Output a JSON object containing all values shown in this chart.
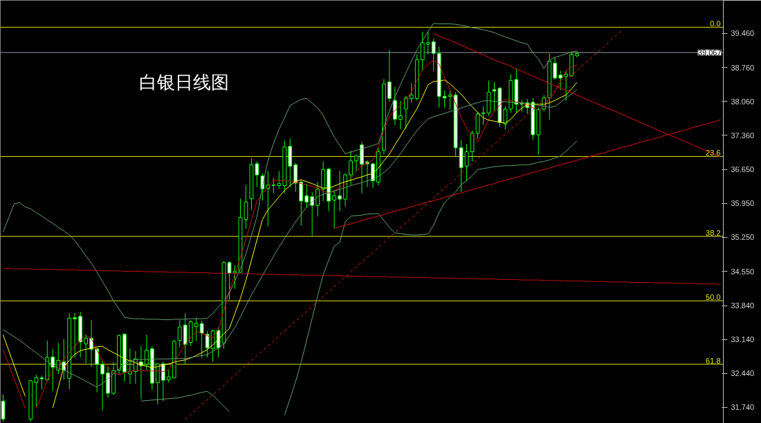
{
  "chart_data": {
    "type": "candlestick",
    "title": "白银日线图",
    "color": "#00ff00",
    "categories": [
      null,
      null,
      null,
      null,
      null,
      null,
      null,
      null,
      null,
      null,
      null,
      null,
      null,
      null,
      null,
      null,
      null,
      null,
      null,
      null,
      null,
      null,
      null,
      null,
      null,
      null,
      null,
      null,
      null,
      null,
      null,
      null,
      null,
      null,
      null,
      null,
      null,
      null,
      null,
      null,
      null,
      null,
      null,
      null,
      null,
      null,
      null,
      null,
      null,
      null,
      null,
      null,
      null,
      null,
      null,
      null,
      null,
      null,
      null,
      null,
      null,
      null,
      null,
      null,
      null,
      null,
      null,
      null,
      null,
      null,
      null,
      null,
      null,
      null,
      null,
      null,
      null,
      null,
      null,
      null,
      null,
      null,
      null,
      null,
      null,
      null,
      null,
      null,
      null,
      null,
      null,
      null,
      null,
      null,
      null,
      null,
      null,
      null,
      null,
      null,
      null,
      null,
      null,
      null,
      null,
      null,
      null,
      null,
      null,
      null,
      null,
      null,
      null,
      null,
      null,
      null,
      null,
      null,
      null,
      null,
      null,
      null,
      null,
      null,
      null,
      null,
      null,
      null,
      null,
      null,
      null
    ],
    "ohlc": [
      [
        31.87,
        32.01,
        31.45,
        31.5
      ],
      null,
      null,
      null,
      null,
      [
        31.5,
        32.31,
        31.45,
        32.29
      ],
      [
        32.25,
        32.41,
        31.76,
        32.35
      ],
      [
        32.35,
        32.4,
        32.11,
        32.33
      ],
      [
        32.31,
        33.12,
        32.28,
        32.77
      ],
      [
        32.78,
        32.95,
        32.08,
        32.57
      ],
      [
        32.51,
        33.07,
        32.43,
        32.71
      ],
      [
        32.68,
        33.15,
        32.31,
        32.51
      ],
      [
        32.34,
        33.68,
        32.11,
        33.58
      ],
      [
        33.59,
        33.69,
        32.77,
        33.57
      ],
      [
        33.62,
        33.71,
        32.77,
        33.09
      ],
      [
        33.05,
        33.25,
        32.65,
        33.17
      ],
      [
        33.17,
        33.54,
        32.58,
        32.94
      ],
      [
        32.95,
        32.97,
        32.05,
        32.63
      ],
      [
        32.63,
        32.7,
        31.68,
        32.43
      ],
      [
        32.45,
        32.58,
        31.94,
        32.03
      ],
      [
        32.03,
        32.68,
        32.0,
        32.5
      ],
      [
        32.51,
        33.25,
        32.41,
        33.22
      ],
      [
        33.25,
        33.27,
        32.27,
        32.47
      ],
      [
        32.43,
        32.95,
        32.23,
        32.48
      ],
      [
        32.48,
        32.9,
        32.23,
        32.74
      ],
      [
        32.68,
        33.01,
        31.91,
        32.6
      ],
      [
        32.63,
        33.24,
        32.51,
        32.92
      ],
      [
        32.95,
        33.0,
        32.1,
        32.24
      ],
      [
        32.25,
        32.65,
        31.8,
        32.64
      ],
      [
        32.64,
        32.68,
        31.87,
        32.3
      ],
      [
        32.31,
        32.51,
        32.25,
        32.37
      ],
      [
        32.35,
        33.14,
        32.34,
        33.1
      ],
      [
        33.12,
        33.54,
        32.98,
        33.4
      ],
      [
        33.44,
        33.68,
        32.63,
        33.04
      ],
      [
        33.08,
        33.54,
        33.01,
        33.51
      ],
      [
        33.41,
        33.59,
        33.11,
        33.47
      ],
      [
        33.47,
        33.53,
        32.77,
        33.27
      ],
      [
        33.25,
        33.32,
        32.77,
        32.97
      ],
      [
        32.95,
        33.35,
        32.68,
        33.32
      ],
      [
        33.33,
        33.39,
        32.77,
        32.97
      ],
      [
        33.07,
        34.76,
        32.95,
        34.73
      ],
      [
        34.73,
        34.76,
        33.96,
        34.51
      ],
      [
        34.52,
        34.67,
        34.19,
        34.55
      ],
      [
        34.53,
        36.05,
        34.52,
        35.66
      ],
      [
        35.62,
        36.33,
        35.43,
        35.98
      ],
      [
        36.05,
        36.88,
        35.82,
        36.75
      ],
      [
        36.77,
        36.82,
        36.29,
        36.54
      ],
      [
        36.52,
        36.57,
        36.01,
        36.25
      ],
      [
        36.26,
        36.62,
        35.48,
        36.33
      ],
      [
        36.33,
        36.48,
        36.16,
        36.32
      ],
      [
        36.32,
        36.62,
        36.25,
        36.36
      ],
      [
        36.32,
        37.25,
        36.16,
        37.12
      ],
      [
        37.13,
        37.29,
        36.29,
        36.72
      ],
      [
        36.75,
        36.79,
        36.19,
        36.37
      ],
      [
        36.39,
        36.43,
        35.5,
        36.0
      ],
      [
        36.11,
        36.36,
        35.86,
        35.98
      ],
      [
        36.09,
        36.19,
        35.29,
        35.91
      ],
      [
        35.91,
        36.39,
        35.68,
        36.25
      ],
      [
        36.25,
        36.82,
        36.0,
        36.65
      ],
      [
        36.66,
        36.69,
        35.79,
        36.0
      ],
      [
        36.02,
        36.22,
        35.43,
        36.11
      ],
      [
        36.11,
        36.62,
        35.79,
        36.04
      ],
      [
        36.04,
        36.58,
        35.89,
        36.54
      ],
      [
        36.54,
        37.04,
        36.33,
        36.83
      ],
      [
        36.83,
        36.96,
        36.62,
        36.93
      ],
      [
        37.16,
        37.22,
        36.16,
        36.76
      ],
      [
        36.81,
        36.84,
        36.29,
        36.77
      ],
      [
        36.77,
        36.79,
        36.27,
        36.42
      ],
      [
        36.39,
        37.11,
        36.33,
        37.02
      ],
      [
        37.05,
        38.52,
        36.96,
        38.42
      ],
      [
        38.46,
        39.12,
        38.05,
        38.12
      ],
      [
        38.08,
        38.36,
        37.57,
        37.69
      ],
      [
        37.69,
        38.07,
        37.48,
        37.76
      ],
      [
        37.9,
        38.17,
        37.5,
        38.13
      ],
      [
        38.12,
        38.43,
        38.03,
        38.19
      ],
      [
        38.12,
        39.03,
        38.08,
        38.92
      ],
      [
        38.92,
        39.5,
        38.69,
        39.27
      ],
      [
        39.24,
        39.5,
        39.03,
        39.27
      ],
      [
        39.29,
        39.35,
        38.69,
        39.05
      ],
      [
        39.05,
        39.19,
        37.93,
        38.16
      ],
      [
        38.16,
        38.29,
        37.93,
        38.13
      ],
      [
        38.16,
        38.29,
        37.89,
        38.19
      ],
      [
        38.19,
        38.25,
        36.91,
        37.1
      ],
      [
        37.1,
        37.26,
        36.19,
        36.69
      ],
      [
        36.72,
        37.18,
        36.41,
        37.02
      ],
      [
        37.02,
        37.46,
        36.82,
        37.4
      ],
      [
        37.4,
        37.83,
        37.29,
        37.8
      ],
      [
        37.82,
        37.96,
        37.57,
        37.81
      ],
      [
        37.82,
        38.49,
        37.76,
        38.25
      ],
      [
        38.3,
        38.46,
        37.86,
        38.27
      ],
      [
        38.33,
        38.36,
        37.53,
        37.62
      ],
      [
        37.59,
        37.96,
        37.48,
        37.9
      ],
      [
        37.9,
        38.62,
        37.82,
        38.49
      ],
      [
        38.51,
        38.72,
        37.82,
        38.0
      ],
      [
        38.03,
        38.09,
        37.85,
        38.0
      ],
      [
        38.03,
        38.11,
        37.8,
        37.93
      ],
      [
        38.04,
        38.13,
        37.26,
        37.37
      ],
      [
        37.37,
        37.93,
        36.96,
        37.89
      ],
      [
        37.9,
        38.19,
        37.86,
        38.13
      ],
      [
        38.13,
        39.05,
        37.68,
        38.89
      ],
      [
        38.85,
        38.97,
        38.51,
        38.54
      ],
      [
        38.6,
        38.69,
        38.29,
        38.54
      ],
      [
        38.57,
        38.69,
        38.07,
        38.62
      ],
      [
        38.59,
        39.09,
        38.57,
        39.03
      ],
      [
        39.0,
        39.09,
        38.97,
        39.05
      ],
      null,
      null,
      null,
      null,
      null,
      null,
      null,
      null,
      null,
      null,
      null,
      null,
      null,
      null,
      null,
      null,
      null,
      null,
      null,
      null,
      null,
      null,
      null,
      null,
      null,
      null
    ],
    "series": [
      {
        "type": "line",
        "color": "#cc1010",
        "values": [
          32.93,
          32.63,
          32.33,
          32.03,
          31.73,
          null,
          31.72,
          32.0,
          32.3,
          32.5,
          32.61,
          32.73,
          32.87,
          33.01,
          33.13,
          33.23,
          33.16,
          32.92,
          32.71,
          32.58,
          32.45,
          32.42,
          32.45,
          32.48,
          32.51,
          32.5,
          32.5,
          32.49,
          32.49,
          32.48,
          32.52,
          32.69,
          32.86,
          33.03,
          33.19,
          33.31,
          33.27,
          33.22,
          33.17,
          33.35,
          33.75,
          34.15,
          34.49,
          34.84,
          35.21,
          35.61,
          36.01,
          36.15,
          36.29,
          36.43,
          36.43,
          36.42,
          36.41,
          36.39,
          36.36,
          36.33,
          36.3,
          36.27,
          36.21,
          36.16,
          36.21,
          36.28,
          36.34,
          36.47,
          36.61,
          36.73,
          36.79,
          36.85,
          37.12,
          37.46,
          37.75,
          37.87,
          37.98,
          38.09,
          38.26,
          38.49,
          38.72,
          38.82,
          38.91,
          38.83,
          38.56,
          38.29,
          38.01,
          37.72,
          37.51,
          37.36,
          37.22,
          37.45,
          37.68,
          37.85,
          37.98,
          38.1,
          38.07,
          38.05,
          38.02,
          37.98,
          37.93,
          37.87,
          37.97,
          38.11,
          38.25,
          38.47,
          38.69,
          38.77,
          38.81,
          null,
          null,
          null,
          null,
          null,
          null,
          null,
          null,
          null,
          null,
          null,
          null,
          null,
          null,
          null,
          null,
          null,
          null,
          null,
          null,
          null,
          null,
          null,
          null,
          null,
          null
        ]
      },
      {
        "type": "line",
        "color": "#ffff00",
        "values": [
          33.24,
          32.92,
          32.6,
          32.28,
          31.97,
          null,
          null,
          null,
          null,
          31.73,
          32.15,
          32.58,
          32.71,
          32.84,
          32.91,
          32.94,
          32.96,
          32.99,
          33.0,
          32.93,
          32.87,
          32.81,
          32.74,
          32.7,
          32.66,
          32.62,
          32.59,
          32.56,
          32.58,
          32.61,
          32.64,
          32.67,
          32.7,
          32.72,
          32.76,
          32.81,
          32.87,
          32.93,
          33.03,
          33.14,
          33.26,
          33.37,
          33.68,
          33.99,
          34.36,
          34.78,
          35.2,
          35.62,
          35.82,
          35.95,
          36.09,
          36.22,
          36.32,
          36.41,
          36.44,
          36.4,
          36.36,
          36.31,
          36.27,
          36.27,
          36.31,
          36.36,
          36.4,
          36.43,
          36.47,
          36.5,
          36.54,
          36.57,
          36.68,
          36.83,
          36.97,
          37.16,
          37.34,
          37.53,
          37.72,
          37.91,
          38.15,
          38.4,
          38.47,
          38.48,
          38.5,
          38.42,
          38.31,
          38.21,
          38.07,
          37.95,
          37.83,
          37.72,
          37.67,
          37.65,
          37.63,
          37.61,
          37.69,
          37.82,
          37.92,
          38.0,
          38.0,
          38.0,
          38.0,
          38.03,
          38.08,
          38.14,
          38.19,
          38.32,
          38.45,
          null,
          null,
          null,
          null,
          null,
          null,
          null,
          null,
          null,
          null,
          null,
          null,
          null,
          null,
          null,
          null,
          null,
          null,
          null,
          null,
          null,
          null,
          null,
          null,
          null,
          null
        ]
      },
      {
        "type": "line",
        "color": "#5f9f6f",
        "values": [
          35.36,
          35.65,
          35.94,
          35.97,
          35.88,
          35.84,
          35.76,
          35.69,
          35.61,
          35.54,
          35.46,
          35.38,
          35.31,
          35.18,
          35.03,
          34.87,
          34.72,
          34.53,
          34.34,
          34.15,
          33.94,
          33.77,
          33.6,
          33.58,
          33.57,
          33.57,
          33.56,
          33.56,
          33.56,
          33.55,
          33.55,
          33.56,
          33.56,
          33.56,
          33.57,
          33.57,
          33.57,
          33.58,
          33.68,
          33.81,
          33.93,
          34.1,
          34.35,
          34.6,
          34.91,
          35.29,
          35.68,
          36.32,
          36.84,
          37.19,
          37.48,
          37.72,
          37.97,
          38.04,
          38.1,
          38.12,
          38.02,
          37.92,
          37.77,
          37.54,
          37.32,
          37.15,
          36.98,
          37.01,
          37.05,
          37.08,
          37.11,
          37.15,
          37.19,
          37.53,
          37.86,
          38.15,
          38.4,
          38.65,
          38.9,
          39.12,
          39.31,
          39.5,
          39.67,
          39.66,
          39.66,
          39.66,
          39.65,
          39.63,
          39.61,
          39.58,
          39.56,
          39.54,
          39.51,
          39.48,
          39.43,
          39.39,
          39.35,
          39.31,
          39.27,
          39.24,
          39.06,
          38.93,
          38.74,
          38.91,
          38.97,
          39.0,
          39.04,
          39.08,
          39.1,
          null,
          null,
          null,
          null,
          null,
          null,
          null,
          null,
          null,
          null,
          null,
          null,
          null,
          null,
          null,
          null,
          null,
          null,
          null,
          null,
          null,
          null,
          null,
          null,
          null,
          null
        ]
      },
      {
        "type": "line",
        "color": "#5f9f6f",
        "values": [
          33.35,
          33.27,
          33.2,
          33.12,
          33.04,
          32.95,
          32.87,
          32.78,
          32.69,
          32.61,
          32.55,
          32.51,
          32.45,
          32.4,
          32.34,
          32.28,
          32.22,
          32.16,
          32.23,
          32.33,
          32.43,
          32.54,
          32.63,
          32.7,
          32.73,
          32.73,
          32.73,
          32.74,
          32.74,
          32.74,
          32.74,
          32.75,
          32.75,
          32.75,
          32.77,
          32.79,
          32.81,
          32.83,
          32.9,
          32.96,
          33.05,
          33.22,
          33.39,
          33.61,
          33.84,
          34.06,
          34.26,
          34.46,
          34.66,
          34.86,
          35.05,
          35.23,
          35.4,
          35.57,
          35.73,
          35.88,
          35.98,
          36.09,
          36.14,
          36.17,
          36.21,
          36.24,
          36.28,
          36.32,
          36.35,
          36.38,
          36.42,
          36.45,
          36.51,
          36.59,
          36.69,
          36.83,
          36.98,
          37.14,
          37.3,
          37.46,
          37.58,
          37.7,
          37.74,
          37.78,
          37.81,
          37.85,
          37.88,
          37.92,
          37.96,
          38.0,
          38.03,
          38.07,
          38.07,
          38.06,
          38.06,
          38.05,
          38.04,
          38.03,
          38.03,
          38.01,
          38.0,
          37.98,
          37.96,
          37.94,
          37.95,
          38.04,
          38.13,
          38.21,
          38.3,
          null,
          null,
          null,
          null,
          null,
          null,
          null,
          null,
          null,
          null,
          null,
          null,
          null,
          null,
          null,
          null,
          null,
          null,
          null,
          null,
          null,
          null,
          null,
          null,
          null,
          null
        ]
      },
      {
        "type": "line",
        "color": "#5f9f6f",
        "values": [
          null,
          null,
          null,
          null,
          null,
          null,
          null,
          null,
          null,
          null,
          null,
          null,
          null,
          null,
          null,
          null,
          null,
          null,
          null,
          null,
          null,
          null,
          null,
          null,
          null,
          31.87,
          31.88,
          31.89,
          31.9,
          31.91,
          31.92,
          31.93,
          31.94,
          31.97,
          31.99,
          32.02,
          32.05,
          32.07,
          31.99,
          31.88,
          31.76,
          31.65,
          null,
          null,
          null,
          null,
          null,
          null,
          null,
          null,
          null,
          31.58,
          31.92,
          32.27,
          32.67,
          33.12,
          33.58,
          34.04,
          34.48,
          34.78,
          35.07,
          35.15,
          35.57,
          35.69,
          35.7,
          35.71,
          35.73,
          35.74,
          35.74,
          35.6,
          35.46,
          35.34,
          35.33,
          35.31,
          35.3,
          35.3,
          35.31,
          35.32,
          35.5,
          35.76,
          35.97,
          36.08,
          36.19,
          36.34,
          36.42,
          36.53,
          36.65,
          36.67,
          36.69,
          36.71,
          36.72,
          36.73,
          36.73,
          36.74,
          36.75,
          36.75,
          36.77,
          36.8,
          36.82,
          36.85,
          36.89,
          36.93,
          37.03,
          37.14,
          37.24,
          null,
          null,
          null,
          null,
          null,
          null,
          null,
          null,
          null,
          null,
          null,
          null,
          null,
          null,
          null,
          null,
          null,
          null,
          null,
          null,
          null,
          null,
          null,
          null,
          null,
          null
        ]
      },
      {
        "type": "line",
        "color": "#e01010",
        "values": [
          null,
          null,
          null,
          null,
          null,
          null,
          null,
          null,
          null,
          null,
          null,
          null,
          null,
          null,
          null,
          null,
          null,
          null,
          null,
          null,
          null,
          null,
          null,
          null,
          null,
          null,
          null,
          null,
          null,
          null,
          null,
          null,
          null,
          null,
          null,
          null,
          null,
          null,
          null,
          null,
          null,
          null,
          null,
          null,
          null,
          null,
          null,
          null,
          null,
          null,
          null,
          null,
          null,
          null,
          null,
          null,
          null,
          null,
          null,
          null,
          null,
          null,
          null,
          null,
          null,
          null,
          null,
          null,
          null,
          null,
          null,
          null,
          null,
          null,
          null,
          null,
          null,
          null,
          39.46,
          39.41,
          39.36,
          39.32,
          39.27,
          39.22,
          39.17,
          39.12,
          39.07,
          39.02,
          38.97,
          38.92,
          38.87,
          38.83,
          38.78,
          38.73,
          38.68,
          38.63,
          38.58,
          38.53,
          38.48,
          38.43,
          38.38,
          38.33,
          38.29,
          38.24,
          38.19,
          38.14,
          38.09,
          38.04,
          37.99,
          37.94,
          37.89,
          37.85,
          37.8,
          37.75,
          37.7,
          37.65,
          37.6,
          37.55,
          37.5,
          37.45,
          37.4,
          37.35,
          37.31,
          37.26,
          37.21,
          37.16,
          37.11,
          37.06,
          37.01,
          36.96,
          36.91
        ]
      },
      {
        "type": "line",
        "color": "#e01010",
        "values": [
          null,
          null,
          null,
          null,
          null,
          null,
          null,
          null,
          null,
          null,
          null,
          null,
          null,
          null,
          null,
          null,
          null,
          null,
          null,
          null,
          null,
          null,
          null,
          null,
          null,
          null,
          null,
          null,
          null,
          null,
          null,
          null,
          null,
          null,
          null,
          null,
          null,
          null,
          null,
          null,
          null,
          null,
          null,
          null,
          null,
          null,
          null,
          null,
          null,
          null,
          null,
          null,
          null,
          null,
          null,
          null,
          null,
          null,
          null,
          null,
          35.44,
          35.47,
          35.5,
          35.53,
          35.56,
          35.6,
          35.63,
          35.66,
          35.69,
          35.72,
          35.76,
          35.79,
          35.82,
          35.85,
          35.88,
          35.92,
          35.95,
          35.98,
          36.01,
          36.04,
          36.08,
          36.11,
          36.14,
          36.17,
          36.2,
          36.24,
          36.27,
          36.3,
          36.33,
          36.36,
          36.4,
          36.43,
          36.46,
          36.49,
          36.52,
          36.56,
          36.59,
          36.62,
          36.65,
          36.68,
          36.72,
          36.75,
          36.78,
          36.81,
          36.84,
          36.88,
          36.91,
          36.94,
          36.97,
          37.0,
          37.04,
          37.07,
          37.1,
          37.13,
          37.16,
          37.2,
          37.23,
          37.26,
          37.29,
          37.32,
          37.36,
          37.39,
          37.42,
          37.45,
          37.48,
          37.52,
          37.55,
          37.58,
          37.61,
          37.64,
          37.68
        ]
      },
      {
        "type": "line",
        "color": "#c01010",
        "values": [
          34.61,
          34.61,
          34.6,
          34.6,
          34.6,
          34.6,
          34.59,
          34.59,
          34.59,
          34.59,
          34.58,
          34.58,
          34.58,
          34.58,
          34.57,
          34.57,
          34.57,
          34.57,
          34.56,
          34.56,
          34.56,
          34.56,
          34.55,
          34.55,
          34.55,
          34.55,
          34.54,
          34.54,
          34.54,
          34.54,
          34.53,
          34.53,
          34.53,
          34.53,
          34.52,
          34.52,
          34.52,
          34.52,
          34.51,
          34.51,
          34.51,
          34.51,
          34.5,
          34.5,
          34.5,
          34.5,
          34.49,
          34.49,
          34.49,
          34.49,
          34.48,
          34.48,
          34.48,
          34.48,
          34.47,
          34.47,
          34.47,
          34.47,
          34.46,
          34.46,
          34.46,
          34.46,
          34.45,
          34.45,
          34.45,
          34.45,
          34.44,
          34.44,
          34.44,
          34.44,
          34.43,
          34.43,
          34.43,
          34.43,
          34.42,
          34.42,
          34.42,
          34.42,
          34.41,
          34.41,
          34.41,
          34.41,
          34.4,
          34.4,
          34.4,
          34.4,
          34.39,
          34.39,
          34.39,
          34.39,
          34.38,
          34.38,
          34.38,
          34.38,
          34.37,
          34.37,
          34.37,
          34.37,
          34.36,
          34.36,
          34.36,
          34.36,
          34.35,
          34.35,
          34.35,
          34.35,
          34.34,
          34.34,
          34.34,
          34.34,
          34.33,
          34.33,
          34.33,
          34.33,
          34.32,
          34.32,
          34.32,
          34.32,
          34.31,
          34.31,
          34.31,
          34.31,
          34.3,
          34.3,
          34.3,
          34.3,
          34.29,
          34.29,
          34.29,
          34.29,
          34.28
        ]
      },
      {
        "type": "line",
        "color": "#e02020",
        "line_style": "dashed",
        "values": [
          null,
          null,
          null,
          null,
          null,
          null,
          null,
          null,
          null,
          null,
          null,
          null,
          null,
          null,
          null,
          null,
          null,
          null,
          null,
          null,
          null,
          null,
          null,
          null,
          null,
          null,
          null,
          null,
          null,
          null,
          null,
          null,
          null,
          31.49,
          31.59,
          31.69,
          31.8,
          31.9,
          32.0,
          32.1,
          32.2,
          32.3,
          32.4,
          32.51,
          32.61,
          32.71,
          32.81,
          32.91,
          33.01,
          33.11,
          33.22,
          33.32,
          33.42,
          33.52,
          33.62,
          33.72,
          33.83,
          33.93,
          34.03,
          34.13,
          34.23,
          34.33,
          34.43,
          34.54,
          34.64,
          34.74,
          34.84,
          34.94,
          35.04,
          35.14,
          35.25,
          35.35,
          35.45,
          35.55,
          35.65,
          35.75,
          35.86,
          35.96,
          36.06,
          36.16,
          36.26,
          36.36,
          36.46,
          36.57,
          36.67,
          36.77,
          36.87,
          36.97,
          37.07,
          37.17,
          37.28,
          37.38,
          37.48,
          37.58,
          37.68,
          37.78,
          37.88,
          37.99,
          38.09,
          38.19,
          38.29,
          38.39,
          38.49,
          38.6,
          38.7,
          38.8,
          38.9,
          39.0,
          39.1,
          39.2,
          39.31,
          39.41,
          39.51,
          null,
          null,
          null,
          null,
          null,
          null,
          null,
          null,
          null,
          null,
          null,
          null,
          null,
          null,
          null,
          null,
          null,
          null
        ]
      }
    ],
    "ref_lines": [
      {
        "axis": "y",
        "value": 39.59,
        "color": "#e6e600"
      },
      {
        "axis": "y",
        "value": 36.92,
        "color": "#e6e600"
      },
      {
        "axis": "y",
        "value": 35.27,
        "color": "#e6e600"
      },
      {
        "axis": "y",
        "value": 33.94,
        "color": "#e6e600"
      },
      {
        "axis": "y",
        "value": 32.63,
        "color": "#e6e600"
      },
      {
        "axis": "y",
        "value": 39.067,
        "label": "39.067",
        "color": "#9a9aa8"
      }
    ],
    "annotations": [
      {
        "text": "0.0",
        "y": 39.59
      },
      {
        "text": "23.6",
        "y": 36.92
      },
      {
        "text": "38.2",
        "y": 35.27
      },
      {
        "text": "50.0",
        "y": 33.94
      },
      {
        "text": "61.8",
        "y": 32.63
      }
    ],
    "ylim": [
      31.41,
      40.145
    ],
    "yticks": [
      {
        "value": 39.46,
        "label": "39.460"
      },
      {
        "value": 38.76,
        "label": "38.760"
      },
      {
        "value": 38.06,
        "label": "38.060"
      },
      {
        "value": 37.36,
        "label": "37.360"
      },
      {
        "value": 36.65,
        "label": "36.650"
      },
      {
        "value": 35.95,
        "label": "35.950"
      },
      {
        "value": 35.25,
        "label": "35.250"
      },
      {
        "value": 34.55,
        "label": "34.550"
      },
      {
        "value": 33.84,
        "label": "33.840"
      },
      {
        "value": 33.14,
        "label": "33.140"
      },
      {
        "value": 32.44,
        "label": "32.440"
      },
      {
        "value": 31.74,
        "label": "31.740"
      }
    ],
    "tick_labels": "y",
    "grid": false
  }
}
